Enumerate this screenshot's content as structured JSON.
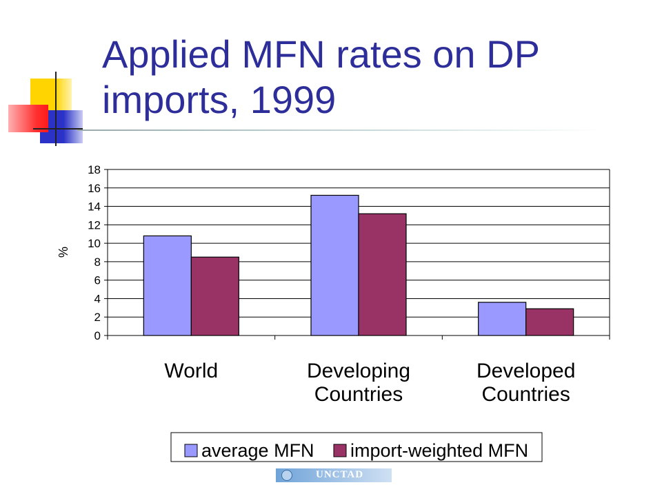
{
  "slide": {
    "title": "Applied MFN rates on DP imports, 1999",
    "logo_text": "UNCTAD"
  },
  "colors": {
    "title": "#2e2e9a",
    "average": "#9999ff",
    "weighted": "#993366",
    "accent_yellow": "#ffd400",
    "accent_blue": "#2a32c8",
    "accent_red": "#ff3030"
  },
  "chart_data": {
    "type": "bar",
    "title": "",
    "xlabel": "",
    "ylabel": "%",
    "ylim": [
      0,
      18
    ],
    "yticks": [
      0,
      2,
      4,
      6,
      8,
      10,
      12,
      14,
      16,
      18
    ],
    "grid": true,
    "legend_position": "bottom",
    "categories": [
      [
        "World"
      ],
      [
        "Developing",
        "Countries"
      ],
      [
        "Developed",
        "Countries"
      ]
    ],
    "series": [
      {
        "name": "average MFN",
        "values": [
          10.8,
          15.2,
          3.6
        ]
      },
      {
        "name": "import-weighted MFN",
        "values": [
          8.5,
          13.2,
          2.9
        ]
      }
    ]
  }
}
